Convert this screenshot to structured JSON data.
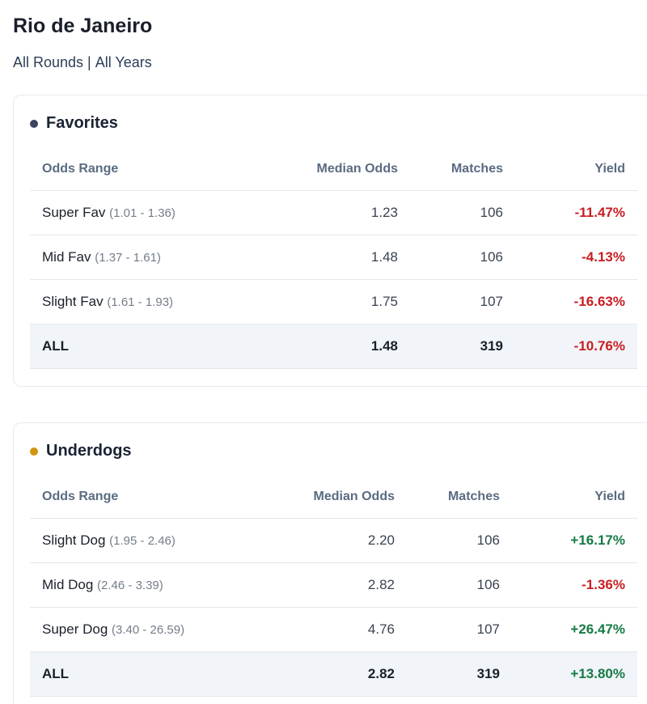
{
  "page": {
    "title": "Rio de Janeiro",
    "filters": {
      "rounds": "All Rounds",
      "separator": "|",
      "years": "All Years"
    }
  },
  "columns": {
    "range": "Odds Range",
    "median": "Median Odds",
    "matches": "Matches",
    "yield": "Yield"
  },
  "favorites": {
    "title": "Favorites",
    "dot_color": "#3b4560",
    "rows": [
      {
        "name": "Super Fav",
        "bounds": "(1.01 - 1.36)",
        "median": "1.23",
        "matches": "106",
        "yield": "-11.47%",
        "sign": "neg"
      },
      {
        "name": "Mid Fav",
        "bounds": "(1.37 - 1.61)",
        "median": "1.48",
        "matches": "106",
        "yield": "-4.13%",
        "sign": "neg"
      },
      {
        "name": "Slight Fav",
        "bounds": "(1.61 - 1.93)",
        "median": "1.75",
        "matches": "107",
        "yield": "-16.63%",
        "sign": "neg"
      }
    ],
    "total": {
      "name": "ALL",
      "median": "1.48",
      "matches": "319",
      "yield": "-10.76%",
      "sign": "neg"
    }
  },
  "underdogs": {
    "title": "Underdogs",
    "dot_color": "#d4930f",
    "rows": [
      {
        "name": "Slight Dog",
        "bounds": "(1.95 - 2.46)",
        "median": "2.20",
        "matches": "106",
        "yield": "+16.17%",
        "sign": "pos"
      },
      {
        "name": "Mid Dog",
        "bounds": "(2.46 - 3.39)",
        "median": "2.82",
        "matches": "106",
        "yield": "-1.36%",
        "sign": "neg"
      },
      {
        "name": "Super Dog",
        "bounds": "(3.40 - 26.59)",
        "median": "4.76",
        "matches": "107",
        "yield": "+26.47%",
        "sign": "pos"
      }
    ],
    "total": {
      "name": "ALL",
      "median": "2.82",
      "matches": "319",
      "yield": "+13.80%",
      "sign": "pos"
    }
  }
}
